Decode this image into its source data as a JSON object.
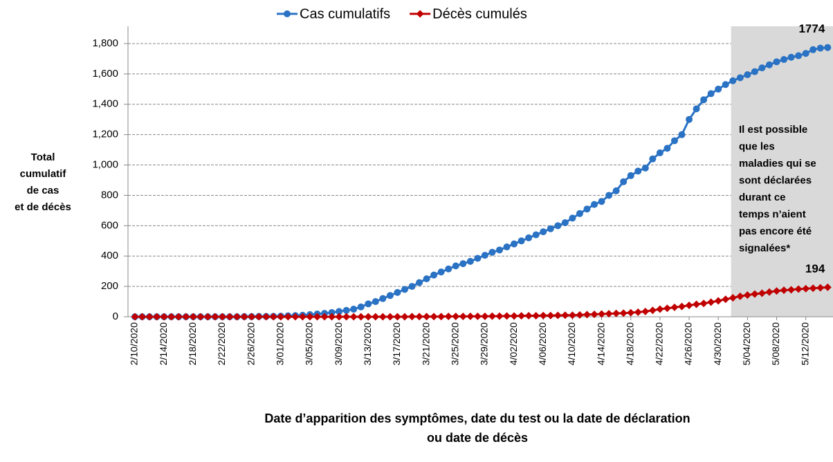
{
  "chart_data": {
    "type": "line",
    "ylabel": [
      "Total",
      "cumulatif",
      "de cas",
      "et de décès"
    ],
    "xlabel": [
      "Date d’apparition des symptômes, date du test ou la date de déclaration",
      "ou date de décès"
    ],
    "annotation": [
      "Il est possible",
      "que les",
      "maladies qui se",
      "sont déclarées",
      "durant ce",
      "temps n’aient",
      "pas encore été",
      "signalées*"
    ],
    "categories": [
      "2/10/2020",
      null,
      null,
      null,
      "2/14/2020",
      null,
      null,
      null,
      "2/18/2020",
      null,
      null,
      null,
      "2/22/2020",
      null,
      null,
      null,
      "2/26/2020",
      null,
      null,
      null,
      "3/01/2020",
      null,
      null,
      null,
      "3/05/2020",
      null,
      null,
      null,
      "3/09/2020",
      null,
      null,
      null,
      "3/13/2020",
      null,
      null,
      null,
      "3/17/2020",
      null,
      null,
      null,
      "3/21/2020",
      null,
      null,
      null,
      "3/25/2020",
      null,
      null,
      null,
      "3/29/2020",
      null,
      null,
      null,
      "4/02/2020",
      null,
      null,
      null,
      "4/06/2020",
      null,
      null,
      null,
      "4/10/2020",
      null,
      null,
      null,
      "4/14/2020",
      null,
      null,
      null,
      "4/18/2020",
      null,
      null,
      null,
      "4/22/2020",
      null,
      null,
      null,
      "4/26/2020",
      null,
      null,
      null,
      "4/30/2020",
      null,
      null,
      null,
      "5/04/2020",
      null,
      null,
      null,
      "5/08/2020",
      null,
      null,
      null,
      "5/12/2020",
      null,
      null,
      null
    ],
    "series": [
      {
        "name": "Cas cumulatifs",
        "color": "#2a72c4",
        "marker": "circle",
        "values": [
          0,
          0,
          0,
          0,
          0,
          0,
          0,
          0,
          0,
          0,
          0,
          0,
          0,
          0,
          0,
          1,
          1,
          2,
          2,
          3,
          4,
          6,
          8,
          10,
          14,
          18,
          22,
          28,
          35,
          42,
          50,
          65,
          85,
          100,
          120,
          140,
          160,
          180,
          200,
          225,
          250,
          275,
          295,
          315,
          335,
          350,
          365,
          385,
          405,
          425,
          440,
          460,
          480,
          500,
          520,
          540,
          560,
          580,
          600,
          620,
          650,
          680,
          710,
          740,
          760,
          800,
          830,
          890,
          930,
          960,
          980,
          1040,
          1080,
          1110,
          1160,
          1200,
          1300,
          1370,
          1430,
          1470,
          1500,
          1530,
          1555,
          1575,
          1595,
          1615,
          1640,
          1660,
          1680,
          1695,
          1710,
          1720,
          1735,
          1760,
          1770,
          1774
        ]
      },
      {
        "name": "Décès cumulés",
        "color": "#c00000",
        "marker": "diamond",
        "values": [
          0,
          0,
          0,
          0,
          0,
          0,
          0,
          0,
          0,
          0,
          0,
          0,
          0,
          0,
          0,
          0,
          0,
          0,
          0,
          0,
          0,
          0,
          0,
          0,
          0,
          0,
          0,
          0,
          0,
          0,
          0,
          0,
          0,
          0,
          0,
          0,
          0,
          0,
          1,
          1,
          1,
          1,
          1,
          2,
          2,
          2,
          3,
          3,
          3,
          4,
          4,
          5,
          5,
          6,
          7,
          7,
          8,
          8,
          9,
          10,
          10,
          12,
          14,
          16,
          18,
          20,
          22,
          24,
          27,
          30,
          35,
          42,
          50,
          56,
          62,
          68,
          75,
          82,
          88,
          96,
          105,
          115,
          125,
          135,
          143,
          150,
          155,
          163,
          170,
          175,
          178,
          182,
          185,
          188,
          191,
          194
        ]
      }
    ],
    "ylim": [
      0,
      1800
    ],
    "yticks": [
      0,
      200,
      400,
      600,
      800,
      {
        "value": 1000,
        "label": "1,000"
      },
      {
        "value": 1200,
        "label": "1,200"
      },
      {
        "value": 1400,
        "label": "1,400"
      },
      {
        "value": 1600,
        "label": "1,600"
      },
      {
        "value": 1800,
        "label": "1,800"
      }
    ],
    "grid": true
  }
}
